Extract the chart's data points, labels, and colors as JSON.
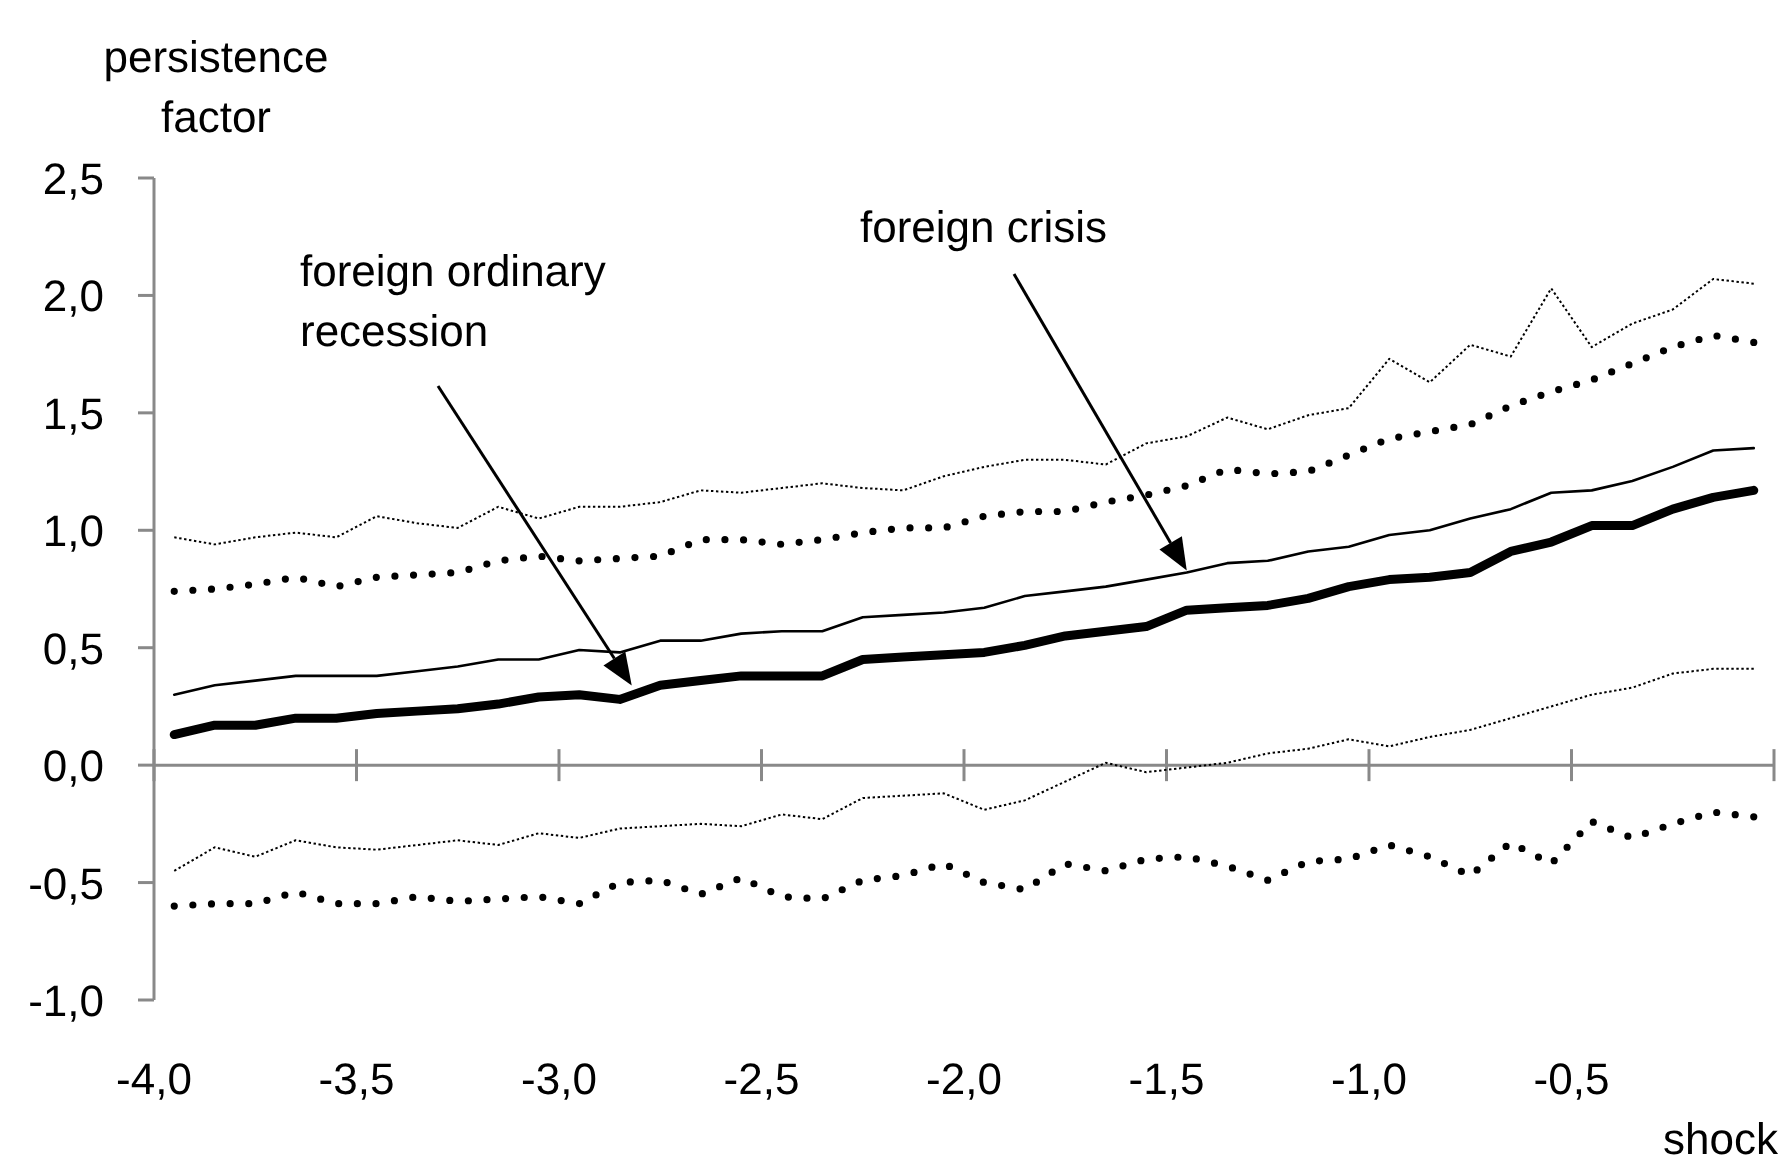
{
  "chart_data": {
    "type": "line",
    "xlabel": "shock",
    "ylabel": "persistence factor",
    "x": [
      -3.95,
      -3.85,
      -3.75,
      -3.65,
      -3.55,
      -3.45,
      -3.35,
      -3.25,
      -3.15,
      -3.05,
      -2.95,
      -2.85,
      -2.75,
      -2.65,
      -2.55,
      -2.45,
      -2.35,
      -2.25,
      -2.15,
      -2.05,
      -1.95,
      -1.85,
      -1.75,
      -1.65,
      -1.55,
      -1.45,
      -1.35,
      -1.25,
      -1.15,
      -1.05,
      -0.95,
      -0.85,
      -0.75,
      -0.65,
      -0.55,
      -0.45,
      -0.35,
      -0.25,
      -0.15,
      -0.05
    ],
    "xlim": [
      -4,
      0
    ],
    "ylim": [
      -1,
      2.5
    ],
    "xticks": [
      {
        "value": -4,
        "label": "-4,0"
      },
      {
        "value": -3.5,
        "label": "-3,5"
      },
      {
        "value": -3,
        "label": "-3,0"
      },
      {
        "value": -2.5,
        "label": "-2,5"
      },
      {
        "value": -2,
        "label": "-2,0"
      },
      {
        "value": -1.5,
        "label": "-1,5"
      },
      {
        "value": -1,
        "label": "-1,0"
      },
      {
        "value": -0.5,
        "label": "-0,5"
      },
      {
        "value": 0,
        "label": null
      }
    ],
    "yticks": [
      {
        "value": -1,
        "label": "-1,0"
      },
      {
        "value": -0.5,
        "label": "-0,5"
      },
      {
        "value": 0,
        "label": "0,0"
      },
      {
        "value": 0.5,
        "label": "0,5"
      },
      {
        "value": 1,
        "label": "1,0"
      },
      {
        "value": 1.5,
        "label": "1,5"
      },
      {
        "value": 2,
        "label": "2,0"
      },
      {
        "value": 2.5,
        "label": "2,5"
      }
    ],
    "series": [
      {
        "name": "foreign crisis",
        "color": "#000000",
        "line_style": "solid",
        "values": [
          0.3,
          0.34,
          0.36,
          0.38,
          0.38,
          0.38,
          0.4,
          0.42,
          0.45,
          0.45,
          0.49,
          0.48,
          0.53,
          0.53,
          0.56,
          0.57,
          0.57,
          0.63,
          0.64,
          0.65,
          0.67,
          0.72,
          0.74,
          0.76,
          0.79,
          0.82,
          0.86,
          0.87,
          0.91,
          0.93,
          0.98,
          1.0,
          1.05,
          1.09,
          1.16,
          1.17,
          1.21,
          1.27,
          1.34,
          1.35
        ]
      },
      {
        "color": "#000000",
        "line_style": "dotted",
        "values": [
          0.97,
          0.94,
          0.97,
          0.99,
          0.97,
          1.06,
          1.03,
          1.01,
          1.1,
          1.05,
          1.1,
          1.1,
          1.12,
          1.17,
          1.16,
          1.18,
          1.2,
          1.18,
          1.17,
          1.23,
          1.27,
          1.3,
          1.3,
          1.28,
          1.37,
          1.4,
          1.48,
          1.43,
          1.49,
          1.52,
          1.73,
          1.63,
          1.79,
          1.74,
          2.03,
          1.78,
          1.88,
          1.94,
          2.07,
          2.05
        ]
      },
      {
        "color": "#000000",
        "line_style": "dotted",
        "values": [
          -0.45,
          -0.35,
          -0.39,
          -0.32,
          -0.35,
          -0.36,
          -0.34,
          -0.32,
          -0.34,
          -0.29,
          -0.31,
          -0.27,
          -0.26,
          -0.25,
          -0.26,
          -0.21,
          -0.23,
          -0.14,
          -0.13,
          -0.12,
          -0.19,
          -0.15,
          -0.07,
          0.01,
          -0.03,
          -0.01,
          0.01,
          0.05,
          0.07,
          0.11,
          0.08,
          0.12,
          0.15,
          0.2,
          0.25,
          0.3,
          0.33,
          0.39,
          0.41,
          0.41
        ]
      },
      {
        "name": "foreign ordinary recession",
        "color": "#000000",
        "line_style": "solid",
        "values": [
          0.13,
          0.17,
          0.17,
          0.2,
          0.2,
          0.22,
          0.23,
          0.24,
          0.26,
          0.29,
          0.3,
          0.28,
          0.34,
          0.36,
          0.38,
          0.38,
          0.38,
          0.45,
          0.46,
          0.47,
          0.48,
          0.51,
          0.55,
          0.57,
          0.59,
          0.66,
          0.67,
          0.68,
          0.71,
          0.76,
          0.79,
          0.8,
          0.82,
          0.91,
          0.95,
          1.02,
          1.02,
          1.09,
          1.14,
          1.17
        ]
      },
      {
        "color": "#000000",
        "line_style": "dotted",
        "values": [
          0.74,
          0.75,
          0.77,
          0.8,
          0.76,
          0.8,
          0.81,
          0.82,
          0.87,
          0.89,
          0.87,
          0.88,
          0.89,
          0.96,
          0.96,
          0.94,
          0.96,
          0.99,
          1.01,
          1.01,
          1.06,
          1.08,
          1.08,
          1.12,
          1.15,
          1.19,
          1.26,
          1.24,
          1.25,
          1.32,
          1.39,
          1.42,
          1.45,
          1.53,
          1.59,
          1.64,
          1.71,
          1.78,
          1.83,
          1.8
        ]
      },
      {
        "color": "#000000",
        "line_style": "dotted",
        "values": [
          -0.6,
          -0.59,
          -0.59,
          -0.54,
          -0.59,
          -0.59,
          -0.56,
          -0.58,
          -0.57,
          -0.56,
          -0.59,
          -0.5,
          -0.49,
          -0.55,
          -0.48,
          -0.56,
          -0.57,
          -0.49,
          -0.47,
          -0.42,
          -0.5,
          -0.53,
          -0.42,
          -0.45,
          -0.4,
          -0.39,
          -0.43,
          -0.49,
          -0.41,
          -0.4,
          -0.34,
          -0.39,
          -0.47,
          -0.33,
          -0.42,
          -0.24,
          -0.31,
          -0.25,
          -0.2,
          -0.22
        ]
      }
    ]
  }
}
